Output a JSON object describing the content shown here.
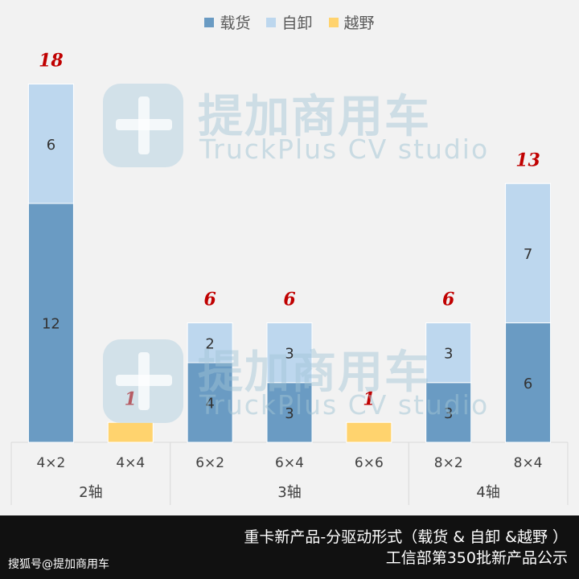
{
  "chart_data": {
    "type": "bar",
    "stacked": true,
    "categories": [
      "4×2",
      "4×4",
      "6×2",
      "6×4",
      "6×6",
      "8×2",
      "8×4"
    ],
    "groups": [
      {
        "label": "2轴",
        "categories": [
          "4×2",
          "4×4"
        ]
      },
      {
        "label": "3轴",
        "categories": [
          "6×2",
          "6×4",
          "6×6"
        ]
      },
      {
        "label": "4轴",
        "categories": [
          "8×2",
          "8×4"
        ]
      }
    ],
    "series": [
      {
        "name": "载货",
        "color": "#6a9bc3",
        "values": [
          12,
          0,
          4,
          3,
          0,
          3,
          6
        ]
      },
      {
        "name": "自卸",
        "color": "#bdd7ee",
        "values": [
          6,
          0,
          2,
          3,
          0,
          3,
          7
        ]
      },
      {
        "name": "越野",
        "color": "#ffd36e",
        "values": [
          0,
          1,
          0,
          0,
          1,
          0,
          0
        ]
      }
    ],
    "totals": [
      18,
      1,
      6,
      6,
      1,
      6,
      13
    ],
    "ylim": [
      0,
      20
    ],
    "grid": false,
    "legend_position": "top"
  },
  "watermark": {
    "chinese": "提加商用车",
    "english": "TruckPlus CV studio"
  },
  "footer": {
    "caption_line1": "重卡新产品-分驱动形式（载货 & 自卸 &越野 ）",
    "caption_line2": "工信部第350批新产品公示",
    "source": "搜狐号@提加商用车"
  },
  "colors": {
    "background": "#f2f2f2",
    "total_label": "#c00000",
    "footer_background": "#111111"
  }
}
